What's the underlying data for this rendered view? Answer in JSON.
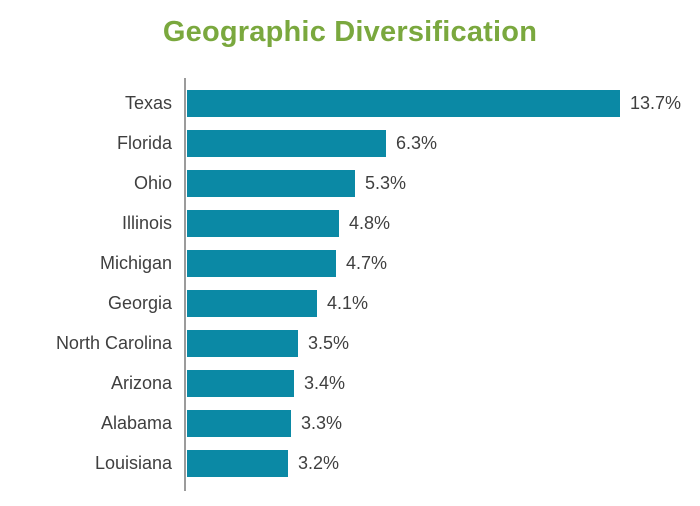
{
  "chart_data": {
    "type": "bar",
    "orientation": "horizontal",
    "title": "Geographic Diversification",
    "categories": [
      "Texas",
      "Florida",
      "Ohio",
      "Illinois",
      "Michigan",
      "Georgia",
      "North Carolina",
      "Arizona",
      "Alabama",
      "Louisiana"
    ],
    "values": [
      13.7,
      6.3,
      5.3,
      4.8,
      4.7,
      4.1,
      3.5,
      3.4,
      3.3,
      3.2
    ],
    "value_labels": [
      "13.7%",
      "6.3%",
      "5.3%",
      "4.8%",
      "4.7%",
      "4.1%",
      "3.5%",
      "3.4%",
      "3.3%",
      "3.2%"
    ],
    "value_suffix": "%",
    "xlim": [
      0,
      14.5
    ],
    "grid": false,
    "legend": "none",
    "colors": {
      "bar": "#0b89a5",
      "title": "#7aa83e",
      "label": "#3f3f3f",
      "axis": "#9b9b9b"
    }
  }
}
